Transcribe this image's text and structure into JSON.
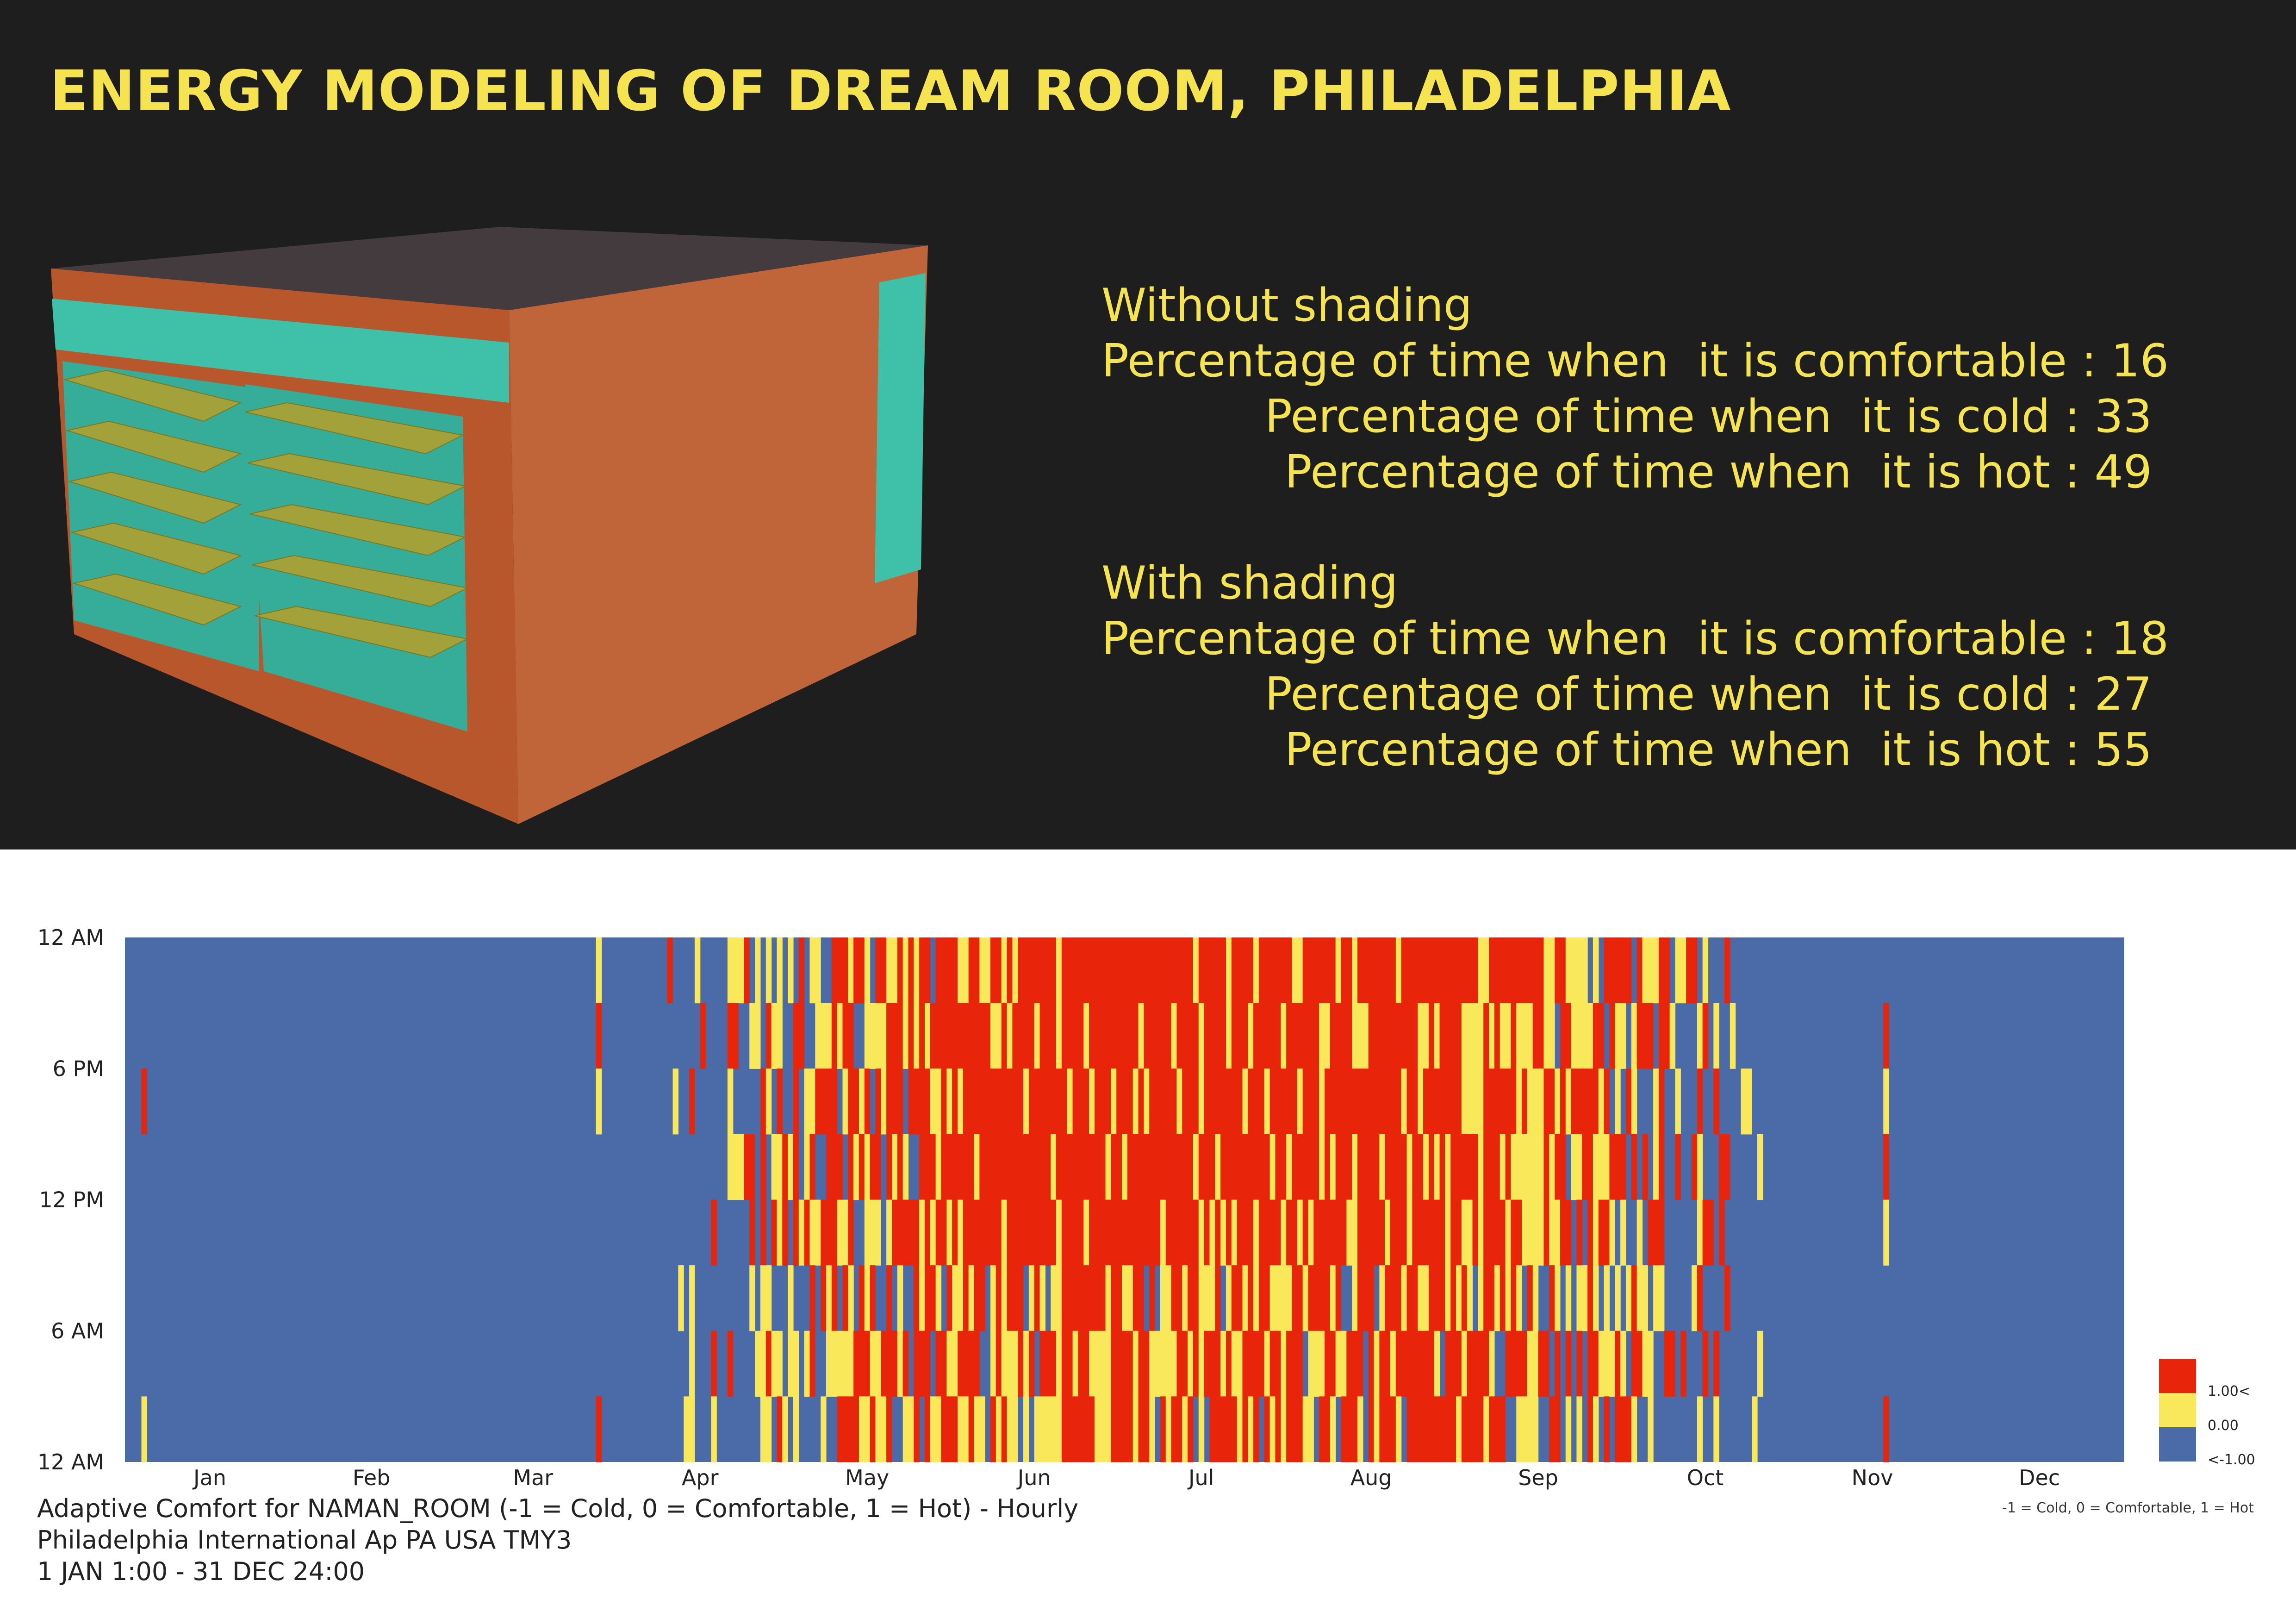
{
  "title": "ENERGY MODELING OF DREAM ROOM, PHILADELPHIA",
  "stats": {
    "without": {
      "heading": "Without shading",
      "comfortable": "Percentage of time when  it is comfortable : 16",
      "cold": "Percentage of time when  it is cold : 33",
      "hot": "Percentage of time when  it is hot : 49"
    },
    "with": {
      "heading": "With shading",
      "comfortable": "Percentage of time when  it is comfortable : 18",
      "cold": "Percentage of time when  it is cold : 27",
      "hot": "Percentage of time when  it is hot : 55"
    }
  },
  "caption": {
    "line1": "Adaptive Comfort for NAMAN_ROOM (-1 = Cold, 0 = Comfortable, 1 = Hot) - Hourly",
    "line2": "Philadelphia International Ap PA USA TMY3",
    "line3": "1 JAN 1:00 - 31 DEC 24:00"
  },
  "model_colors": {
    "wall": "#b8562c",
    "roof": "#433b3e",
    "glass": "#3ec1a8",
    "louver": "#a3a23a"
  },
  "chart_data": {
    "type": "heatmap",
    "x_label_ticks": [
      "Jan",
      "Feb",
      "Mar",
      "Apr",
      "May",
      "Jun",
      "Jul",
      "Aug",
      "Sep",
      "Oct",
      "Nov",
      "Dec"
    ],
    "y_label_ticks": [
      "12 AM",
      "6 PM",
      "12 PM",
      "6 AM",
      "12 AM"
    ],
    "x_range_days": [
      1,
      365
    ],
    "y_range_hours": [
      0,
      24
    ],
    "colors": {
      "hot": "#e8250a",
      "comfortable": "#f9e85a",
      "cold": "#4b6aa8"
    },
    "legend": {
      "labels": [
        "1.00<",
        "0.00",
        "<-1.00"
      ],
      "note": "-1 = Cold, 0 = Comfortable, 1 = Hot",
      "placement": "bottom-right"
    },
    "value_description": "hourly comfort state per day: -1 cold, 0 comfortable, 1 hot; dense seasonal pattern—cold Jan–Mar and Nov–Dec, mixed transition in Apr–May and Sep–Oct, predominantly hot Jun–Aug with comfortable early-morning hours"
  }
}
